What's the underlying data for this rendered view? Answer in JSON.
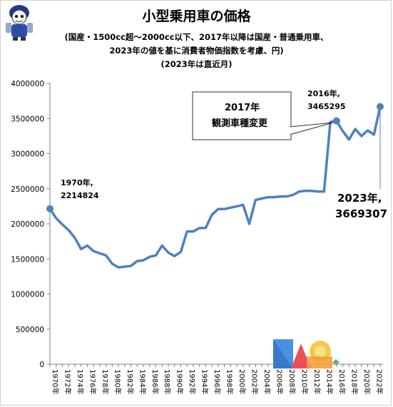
{
  "title": "小型乗用車の価格",
  "subtitle_lines": [
    "(国産・1500cc超～2000cc以下、2017年以降は国産・普通乗用車、",
    "2023年の値を基に消費者物価指数を考慮、円)",
    "(2023年は直近月)"
  ],
  "colors": {
    "line": "#4f81bd",
    "axis": "#808080",
    "callout_border": "#333333"
  },
  "icons": {
    "mascot": "mascot-icon",
    "logo": "logo-icon"
  },
  "chart_data": {
    "type": "line",
    "title": "小型乗用車の価格",
    "xlabel": "",
    "ylabel": "",
    "ylim": [
      0,
      4000000
    ],
    "yticks": [
      0,
      500000,
      1000000,
      1500000,
      2000000,
      2500000,
      3000000,
      3500000,
      4000000
    ],
    "x": [
      1970,
      1971,
      1972,
      1973,
      1974,
      1975,
      1976,
      1977,
      1978,
      1979,
      1980,
      1981,
      1982,
      1983,
      1984,
      1985,
      1986,
      1987,
      1988,
      1989,
      1990,
      1991,
      1992,
      1993,
      1994,
      1995,
      1996,
      1997,
      1998,
      1999,
      2000,
      2001,
      2002,
      2003,
      2004,
      2005,
      2006,
      2007,
      2008,
      2009,
      2010,
      2011,
      2012,
      2013,
      2014,
      2015,
      2016,
      2017,
      2018,
      2019,
      2020,
      2021,
      2022,
      2023
    ],
    "xticks_labels": [
      "1970年",
      "1972年",
      "1974年",
      "1976年",
      "1978年",
      "1980年",
      "1982年",
      "1984年",
      "1986年",
      "1988年",
      "1990年",
      "1992年",
      "1994年",
      "1996年",
      "1998年",
      "2000年",
      "2002年",
      "2004年",
      "2006年",
      "2008年",
      "2010年",
      "2012年",
      "2014年",
      "2016年",
      "2018年",
      "2020年",
      "2022年"
    ],
    "series": [
      {
        "values": [
          2214824,
          2080000,
          1990000,
          1910000,
          1800000,
          1640000,
          1690000,
          1610000,
          1580000,
          1550000,
          1430000,
          1380000,
          1390000,
          1400000,
          1470000,
          1480000,
          1530000,
          1550000,
          1690000,
          1590000,
          1540000,
          1600000,
          1890000,
          1890000,
          1940000,
          1940000,
          2130000,
          2210000,
          2210000,
          2230000,
          2250000,
          2270000,
          2000000,
          2340000,
          2360000,
          2380000,
          2380000,
          2390000,
          2390000,
          2410000,
          2460000,
          2470000,
          2470000,
          2460000,
          2460000,
          3450000,
          3465295,
          3320000,
          3200000,
          3350000,
          3250000,
          3330000,
          3270000,
          3669307
        ]
      }
    ],
    "grid": false,
    "annotations": [
      {
        "text": "1970年,",
        "text2": "2214824"
      },
      {
        "text": "2016年,",
        "text2": "3465295"
      },
      {
        "text": "2023年,",
        "text2": "3669307"
      }
    ],
    "callout": {
      "line1": "2017年",
      "line2": "観測車種変更"
    }
  }
}
